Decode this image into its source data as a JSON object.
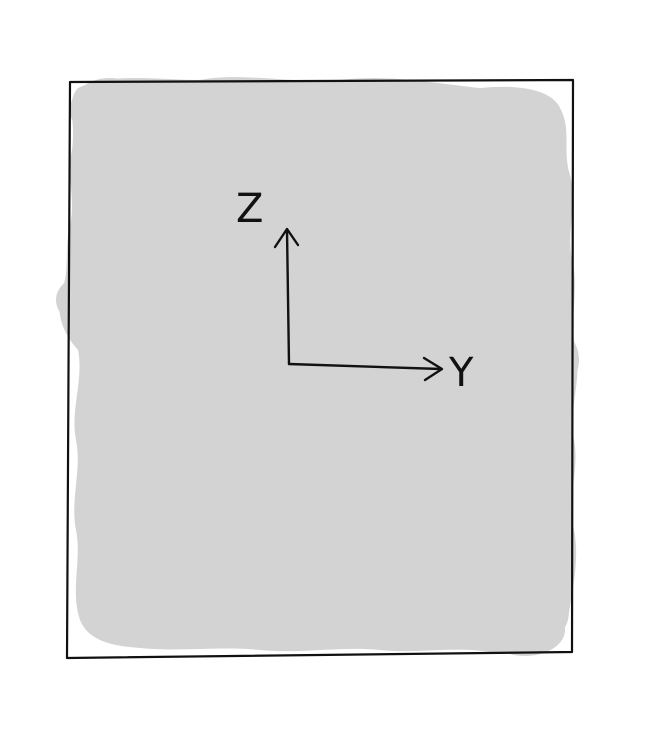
{
  "diagram": {
    "axes": {
      "vertical_label": "Z",
      "horizontal_label": "Y"
    },
    "colors": {
      "background": "#ffffff",
      "fill": "#d3d3d3",
      "stroke": "#111111"
    }
  }
}
